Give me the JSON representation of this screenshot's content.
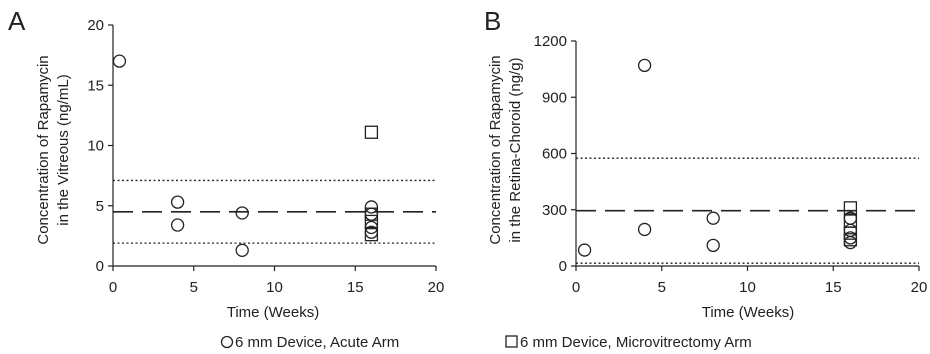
{
  "chart_data": [
    {
      "type": "scatter",
      "panel_label": "A",
      "xlabel": "Time (Weeks)",
      "ylabel_lines": [
        "Concentration of Rapamycin",
        "in the Vitreous (ng/mL)"
      ],
      "xlim": [
        0,
        20
      ],
      "ylim": [
        0,
        20
      ],
      "xticks": [
        0,
        5,
        10,
        15,
        20
      ],
      "yticks": [
        0,
        5,
        10,
        15,
        20
      ],
      "grid": false,
      "series": [
        {
          "marker": "circle",
          "points": [
            [
              0.4,
              17.0
            ],
            [
              4,
              5.3
            ],
            [
              4,
              3.4
            ],
            [
              8,
              4.4
            ],
            [
              8,
              1.3
            ],
            [
              16,
              4.9
            ],
            [
              16,
              4.3
            ],
            [
              16,
              3.2
            ],
            [
              16,
              2.8
            ]
          ]
        },
        {
          "marker": "square",
          "points": [
            [
              16,
              11.1
            ],
            [
              16,
              4.3
            ],
            [
              16,
              3.7
            ],
            [
              16,
              2.6
            ]
          ]
        }
      ],
      "reference_lines": [
        {
          "style": "dashed",
          "y": 4.5
        },
        {
          "style": "dotted",
          "y": 7.1
        },
        {
          "style": "dotted",
          "y": 1.9
        }
      ]
    },
    {
      "type": "scatter",
      "panel_label": "B",
      "xlabel": "Time (Weeks)",
      "ylabel_lines": [
        "Concentration of Rapamycin",
        "in the Retina-Choroid (ng/g)"
      ],
      "xlim": [
        0,
        20
      ],
      "ylim": [
        0,
        1200
      ],
      "xticks": [
        0,
        5,
        10,
        15,
        20
      ],
      "yticks": [
        0,
        300,
        600,
        900,
        1200
      ],
      "grid": false,
      "series": [
        {
          "marker": "circle",
          "points": [
            [
              0.5,
              85
            ],
            [
              4,
              1070
            ],
            [
              4,
              195
            ],
            [
              8,
              255
            ],
            [
              8,
              110
            ],
            [
              16,
              255
            ],
            [
              16,
              190
            ],
            [
              16,
              150
            ],
            [
              16,
              125
            ]
          ]
        },
        {
          "marker": "square",
          "points": [
            [
              16,
              310
            ],
            [
              16,
              240
            ],
            [
              16,
              175
            ],
            [
              16,
              140
            ]
          ]
        }
      ],
      "reference_lines": [
        {
          "style": "dashed",
          "y": 295
        },
        {
          "style": "dotted",
          "y": 575
        },
        {
          "style": "dotted",
          "y": 15
        }
      ]
    }
  ],
  "legend": {
    "placement": "bottom",
    "items": [
      {
        "marker": "circle",
        "label": "6 mm Device, Acute Arm"
      },
      {
        "marker": "square",
        "label": "6 mm Device, Microvitrectomy Arm"
      }
    ]
  }
}
